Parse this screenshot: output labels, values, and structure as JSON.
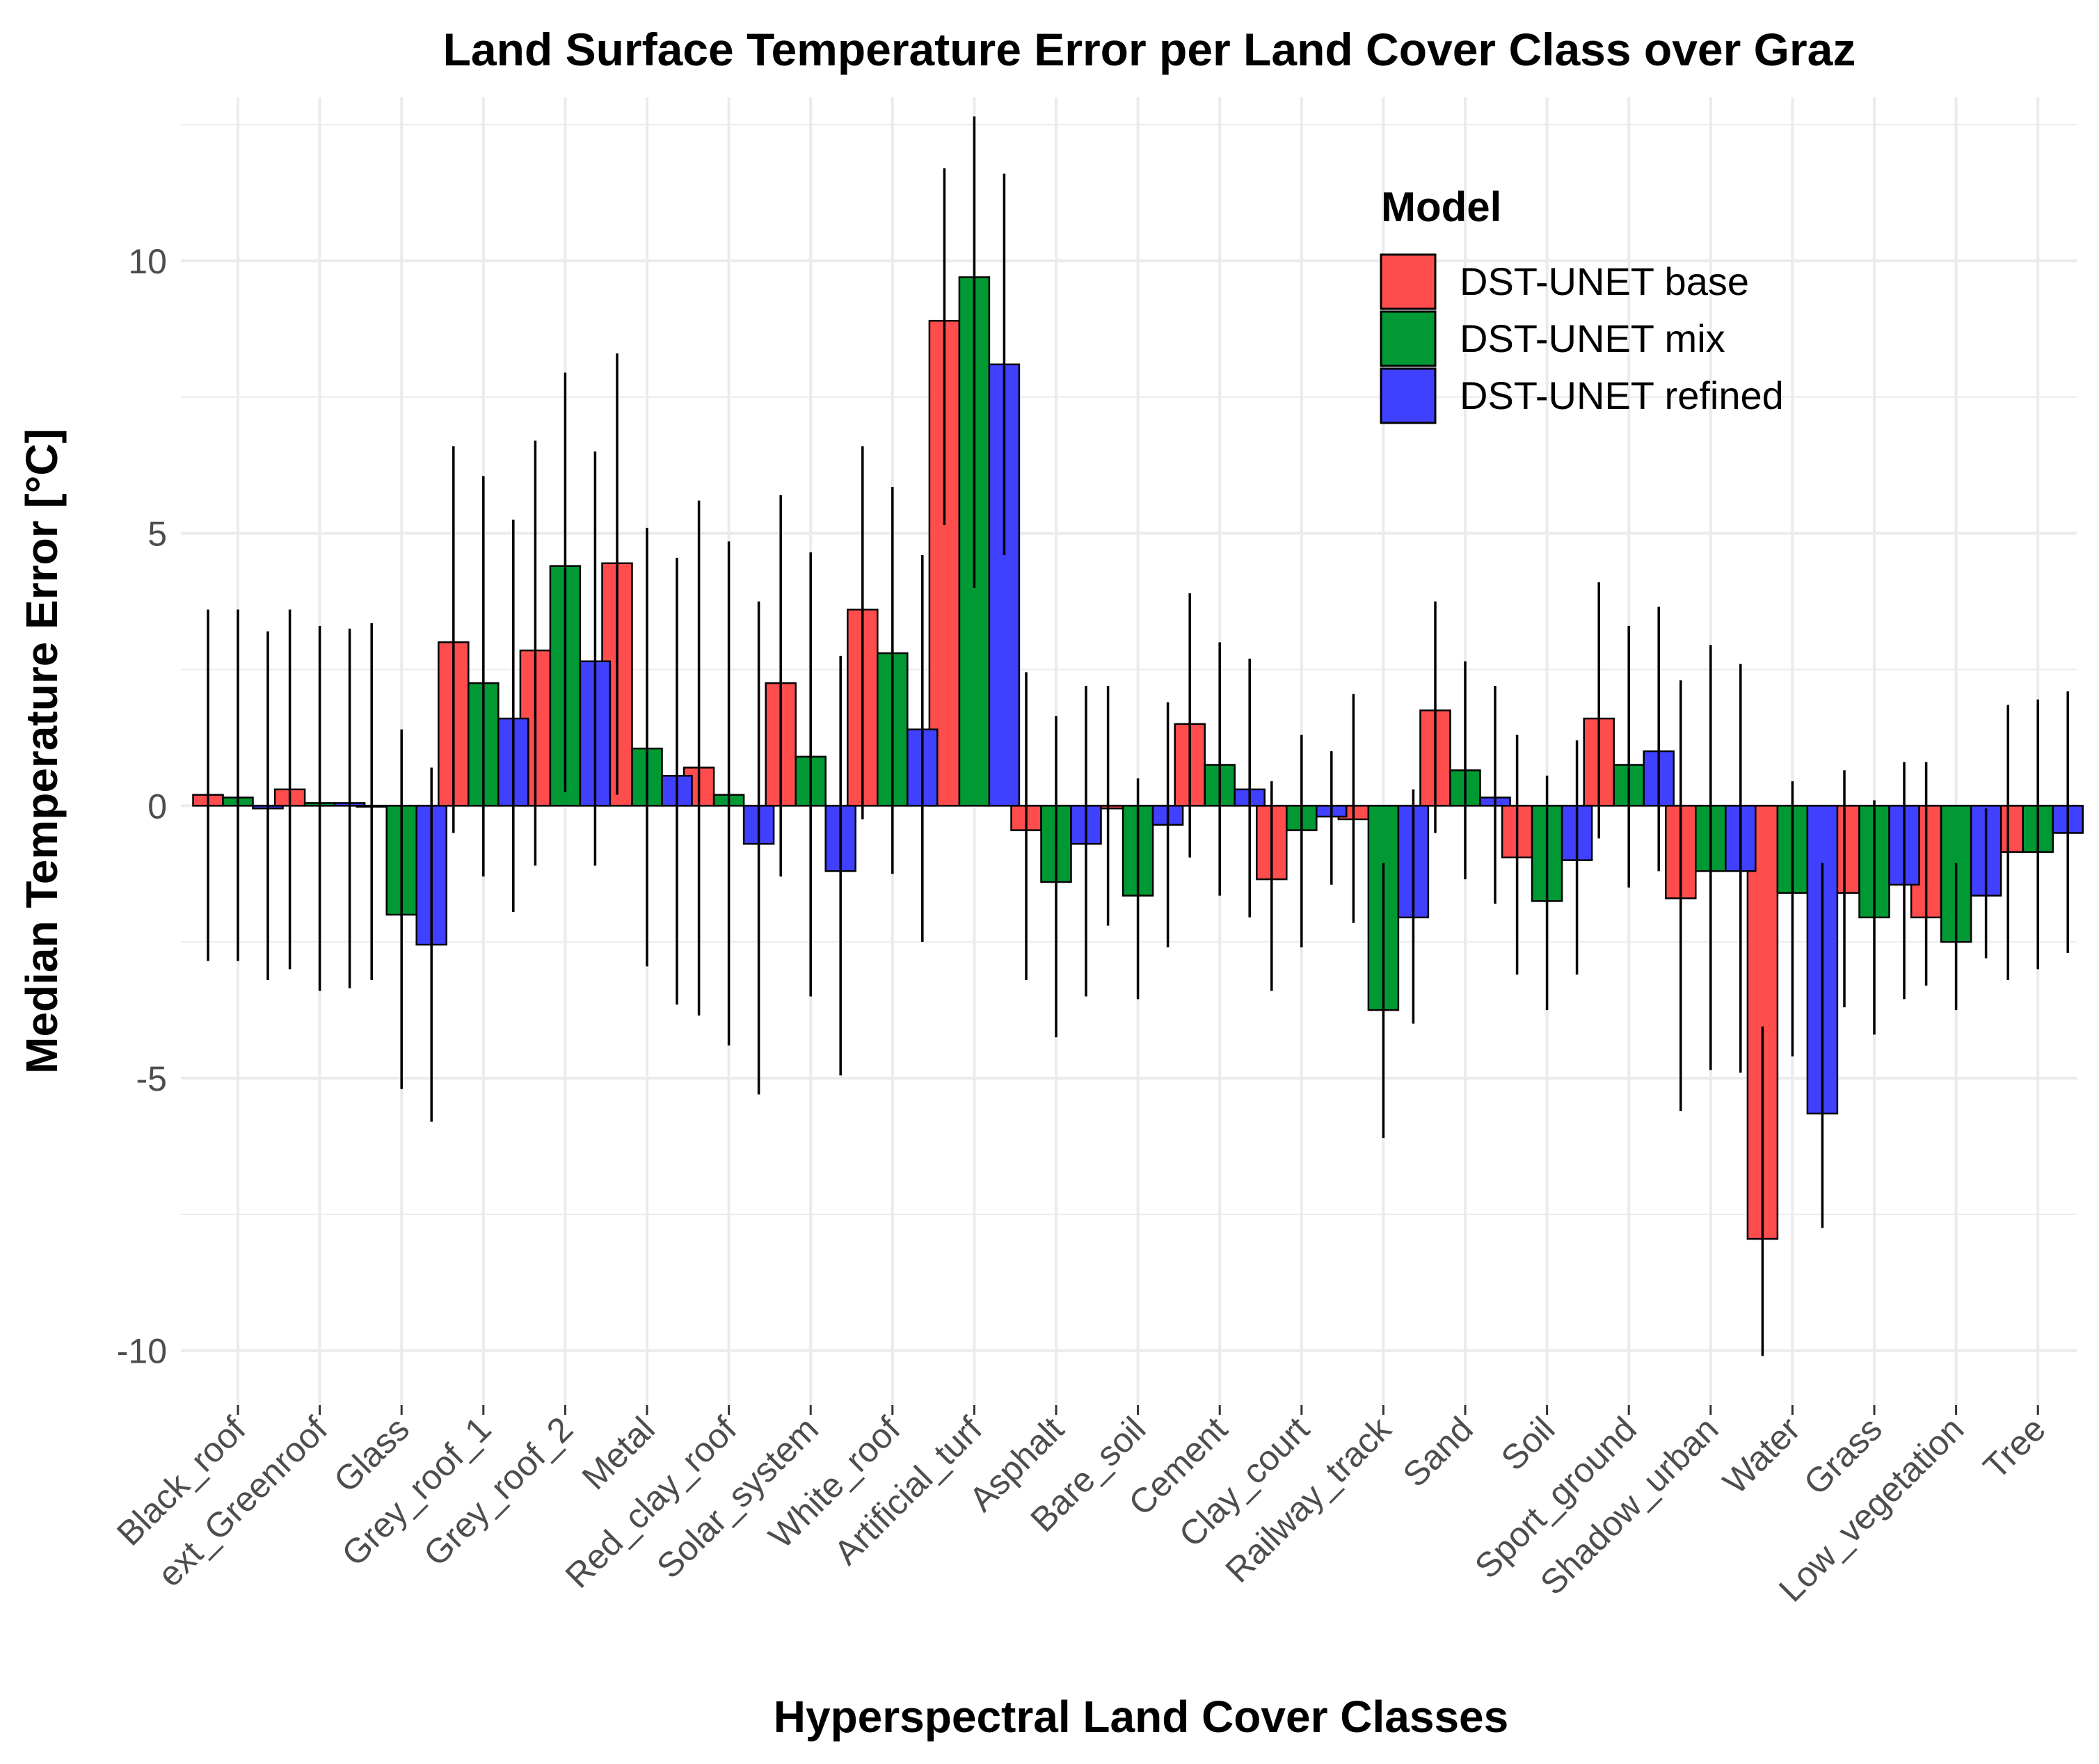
{
  "chart_data": {
    "type": "bar",
    "title": "Land Surface Temperature Error per Land Cover Class over Graz",
    "xlabel": "Hyperspectral Land Cover Classes",
    "ylabel": "Median Temperature Error [°C]",
    "ylim": [
      -11,
      13
    ],
    "yticks": [
      -10,
      -5,
      0,
      5,
      10
    ],
    "grid": true,
    "legend": {
      "title": "Model",
      "position": "top-right"
    },
    "categories": [
      "Black_roof",
      "ext_Greenroof",
      "Glass",
      "Grey_roof_1",
      "Grey_roof_2",
      "Metal",
      "Red_clay_roof",
      "Solar_system",
      "White_roof",
      "Artificial_turf",
      "Asphalt",
      "Bare_soil",
      "Cement",
      "Clay_court",
      "Railway_track",
      "Sand",
      "Soil",
      "Sport_ground",
      "Shadow_urban",
      "Water",
      "Grass",
      "Low_vegetation",
      "Tree"
    ],
    "series": [
      {
        "name": "DST-UNET base",
        "color": "#ff4d4d",
        "values": [
          0.2,
          0.3,
          0.0,
          3.0,
          2.85,
          4.45,
          0.7,
          2.25,
          3.6,
          8.9,
          -0.45,
          -0.05,
          1.5,
          -1.35,
          -0.25,
          1.75,
          -0.95,
          1.6,
          -1.7,
          -7.95,
          -1.6,
          -2.05,
          -0.85
        ],
        "err_low": [
          -2.85,
          -3.0,
          -3.2,
          -0.5,
          -1.1,
          0.2,
          -3.85,
          -1.3,
          -0.25,
          5.15,
          -3.2,
          -2.2,
          -0.95,
          -3.4,
          -2.15,
          -0.5,
          -3.1,
          -0.6,
          -5.6,
          -10.1,
          -3.7,
          -3.3,
          -3.2
        ],
        "err_high": [
          3.6,
          3.6,
          3.35,
          6.6,
          6.7,
          8.3,
          5.6,
          5.7,
          6.6,
          11.7,
          2.45,
          2.2,
          3.9,
          0.45,
          2.05,
          3.75,
          1.3,
          4.1,
          2.3,
          -4.05,
          0.65,
          0.8,
          1.85
        ]
      },
      {
        "name": "DST-UNET mix",
        "color": "#009933",
        "values": [
          0.15,
          0.05,
          -2.0,
          2.25,
          4.4,
          1.05,
          0.2,
          0.9,
          2.8,
          9.7,
          -1.4,
          -1.65,
          0.75,
          -0.45,
          -3.75,
          0.65,
          -1.75,
          0.75,
          -1.2,
          -1.6,
          -2.05,
          -2.5,
          -0.85
        ],
        "err_low": [
          -2.85,
          -3.4,
          -5.2,
          -1.3,
          0.25,
          -2.95,
          -4.4,
          -3.5,
          -1.25,
          4.0,
          -4.25,
          -3.55,
          -1.65,
          -2.6,
          -6.1,
          -1.35,
          -3.75,
          -1.5,
          -4.85,
          -4.6,
          -4.2,
          -3.75,
          -3.0
        ],
        "err_high": [
          3.6,
          3.3,
          1.4,
          6.05,
          7.95,
          5.1,
          4.85,
          4.65,
          5.85,
          12.65,
          1.65,
          0.5,
          3.0,
          1.3,
          -1.05,
          2.65,
          0.55,
          3.3,
          2.95,
          0.45,
          0.1,
          -1.05,
          1.95
        ]
      },
      {
        "name": "DST-UNET refined",
        "color": "#4040ff",
        "values": [
          -0.05,
          0.05,
          -2.55,
          1.6,
          2.65,
          0.55,
          -0.7,
          -1.2,
          1.4,
          8.1,
          -0.7,
          -0.35,
          0.3,
          -0.2,
          -2.05,
          0.15,
          -1.0,
          1.0,
          -1.2,
          -5.65,
          -1.45,
          -1.65,
          -0.5
        ],
        "err_low": [
          -3.2,
          -3.35,
          -5.8,
          -1.95,
          -1.1,
          -3.65,
          -5.3,
          -4.95,
          -2.5,
          4.6,
          -3.5,
          -2.6,
          -2.05,
          -1.45,
          -4.0,
          -1.8,
          -3.1,
          -1.2,
          -4.9,
          -7.75,
          -3.55,
          -2.8,
          -2.7
        ],
        "err_high": [
          3.2,
          3.25,
          0.7,
          5.25,
          6.5,
          4.55,
          3.75,
          2.75,
          4.6,
          11.6,
          2.2,
          1.9,
          2.7,
          1.0,
          0.3,
          2.2,
          1.2,
          3.65,
          2.6,
          -1.05,
          0.8,
          -0.05,
          2.1
        ]
      }
    ]
  }
}
